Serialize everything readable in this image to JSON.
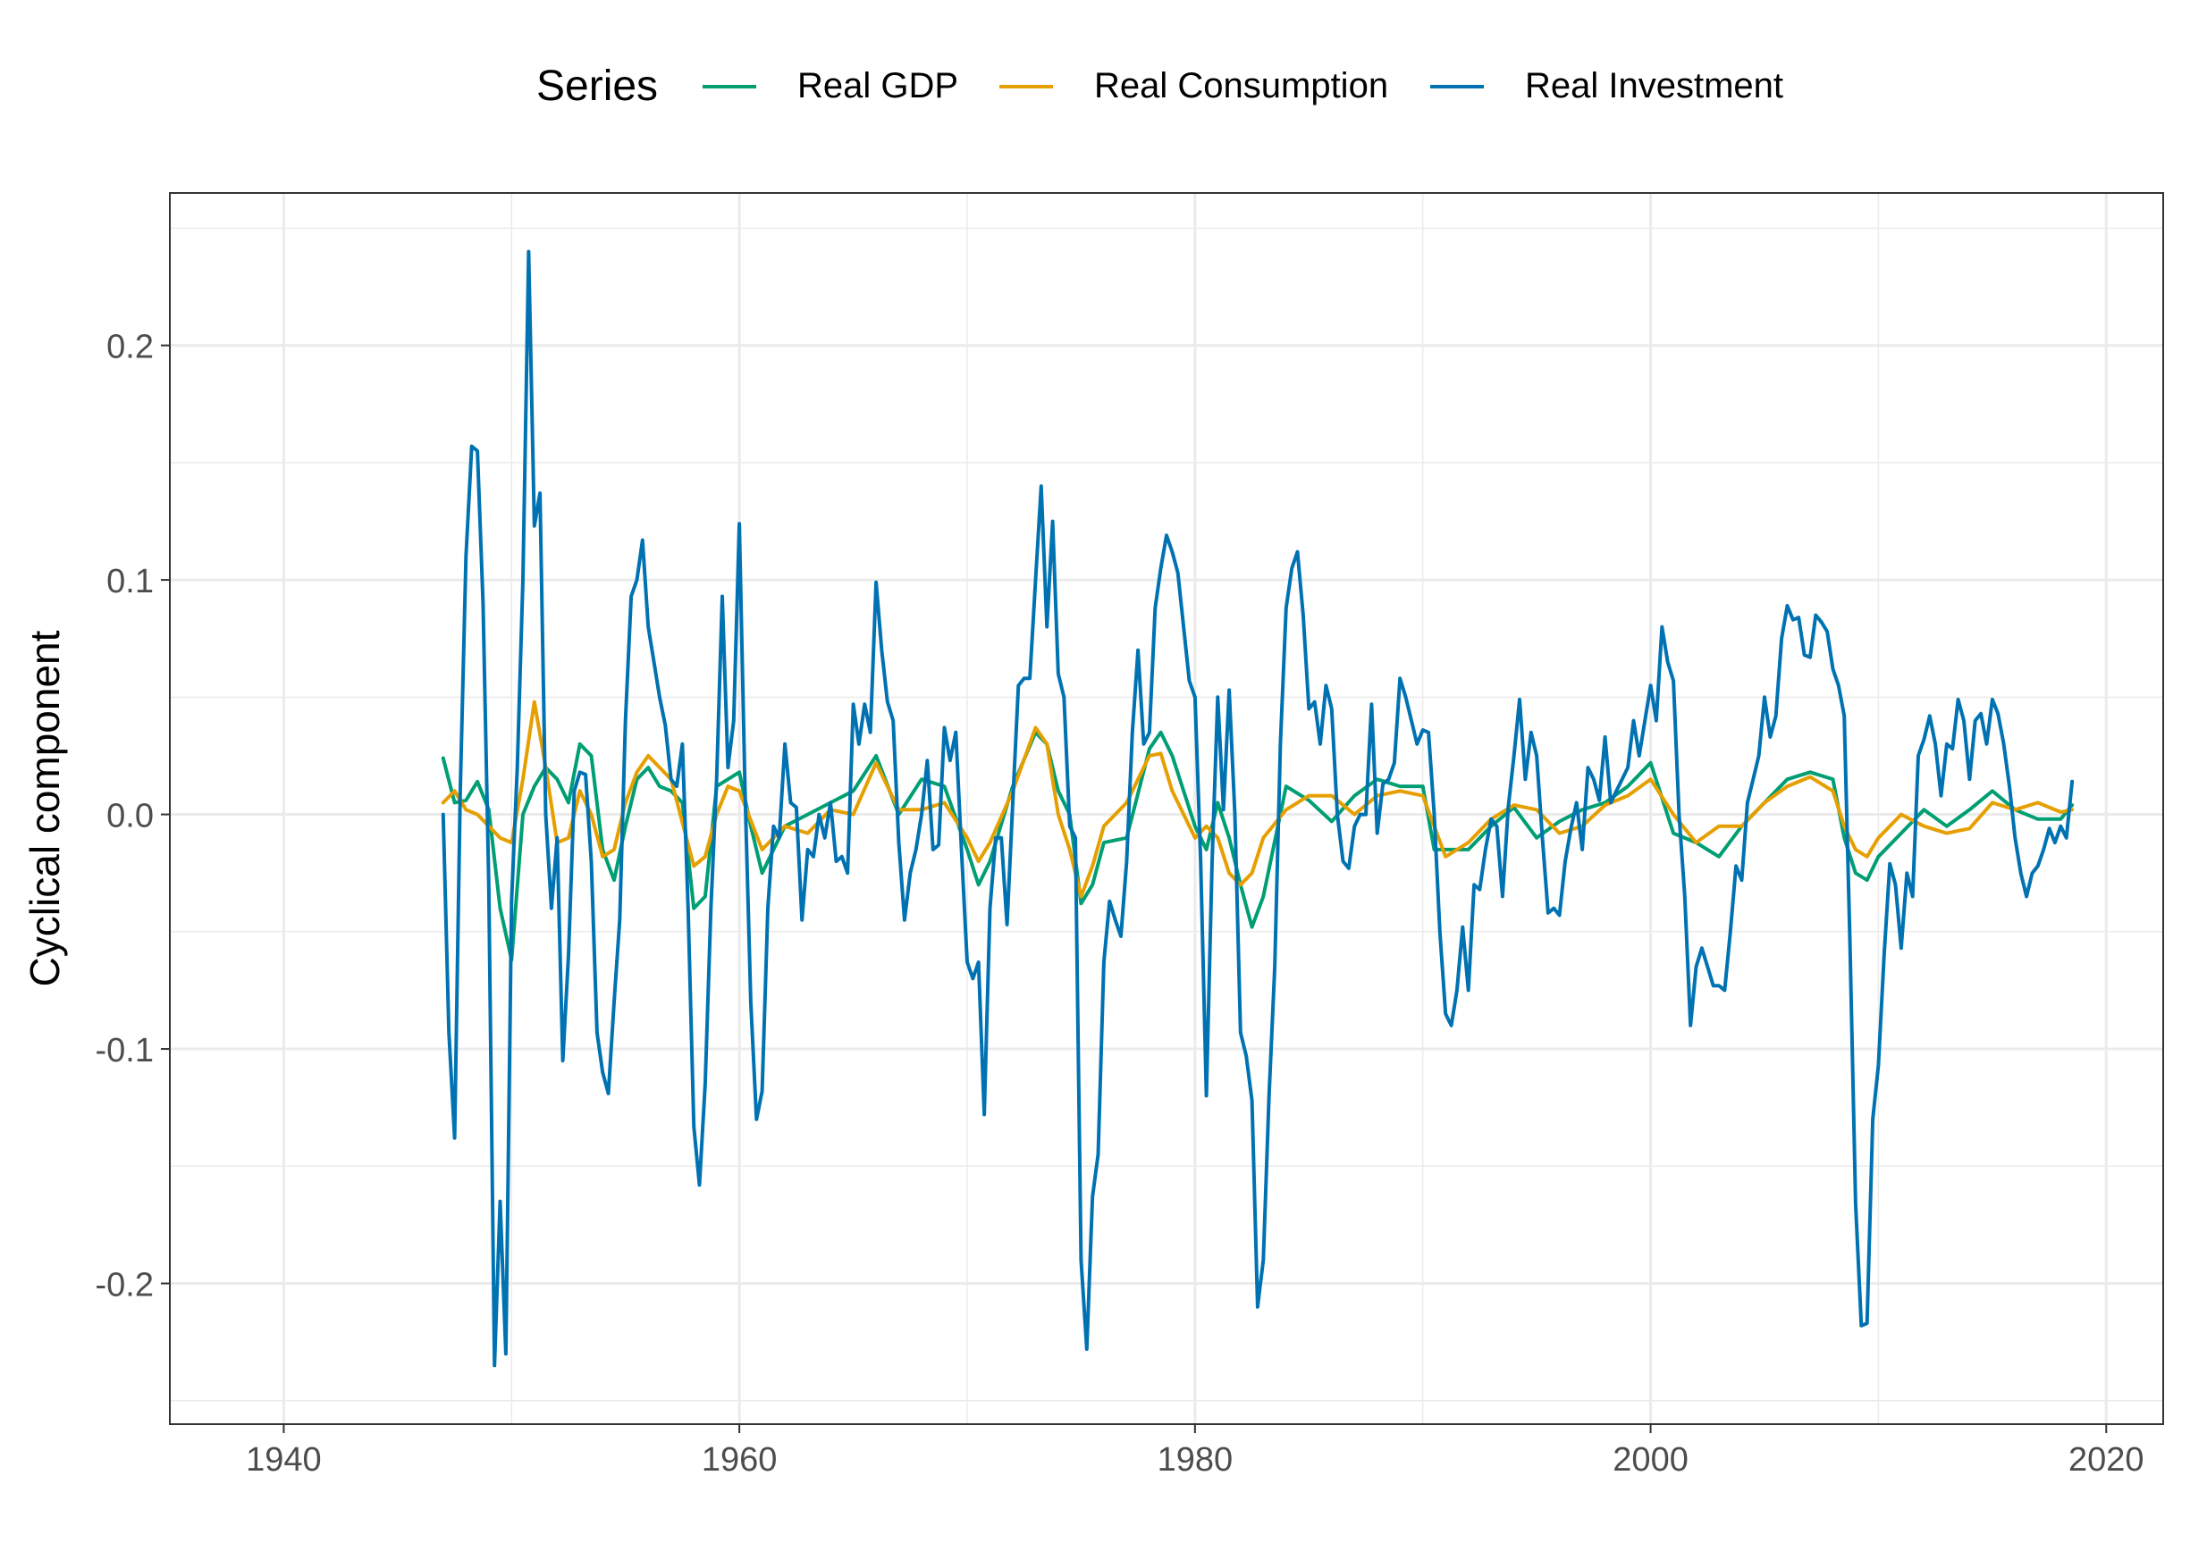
{
  "legend": {
    "title": "Series",
    "items": [
      {
        "label": "Real GDP",
        "color": "#009E73"
      },
      {
        "label": "Real Consumption",
        "color": "#E69F00"
      },
      {
        "label": "Real Investment",
        "color": "#0072B2"
      }
    ]
  },
  "chart_data": {
    "type": "line",
    "title": "",
    "xlabel": "",
    "ylabel": "Cyclical component",
    "xlim": [
      1935,
      2022.5
    ],
    "ylim": [
      -0.26,
      0.265
    ],
    "x_ticks": [
      1940,
      1960,
      1980,
      2000,
      2020
    ],
    "x_tick_labels": [
      "1940",
      "1960",
      "1980",
      "2000",
      "2020"
    ],
    "y_ticks": [
      -0.2,
      -0.1,
      0.0,
      0.1,
      0.2
    ],
    "y_tick_labels": [
      "-0.2",
      "-0.1",
      "0.0",
      "0.1",
      "0.2"
    ],
    "grid": true,
    "legend_position": "top",
    "series": [
      {
        "name": "Real GDP",
        "color": "#009E73",
        "x": [
          1947.0,
          1947.5,
          1948.0,
          1948.5,
          1949.0,
          1949.5,
          1950.0,
          1950.5,
          1951.0,
          1951.5,
          1952.0,
          1952.5,
          1953.0,
          1953.5,
          1954.0,
          1954.5,
          1955.0,
          1955.5,
          1956.0,
          1956.5,
          1957.0,
          1957.5,
          1958.0,
          1958.5,
          1959.0,
          1959.5,
          1960.0,
          1960.5,
          1961.0,
          1961.5,
          1962.0,
          1963.0,
          1964.0,
          1965.0,
          1966.0,
          1967.0,
          1968.0,
          1969.0,
          1970.0,
          1970.5,
          1971.0,
          1972.0,
          1973.0,
          1973.5,
          1974.0,
          1974.5,
          1975.0,
          1975.5,
          1976.0,
          1977.0,
          1978.0,
          1978.5,
          1979.0,
          1980.0,
          1980.5,
          1981.0,
          1981.5,
          1982.0,
          1982.5,
          1983.0,
          1984.0,
          1985.0,
          1986.0,
          1987.0,
          1988.0,
          1989.0,
          1990.0,
          1990.5,
          1991.0,
          1992.0,
          1993.0,
          1994.0,
          1995.0,
          1996.0,
          1997.0,
          1998.0,
          1999.0,
          2000.0,
          2001.0,
          2002.0,
          2003.0,
          2004.0,
          2005.0,
          2006.0,
          2007.0,
          2008.0,
          2008.5,
          2009.0,
          2009.5,
          2010.0,
          2011.0,
          2012.0,
          2013.0,
          2014.0,
          2015.0,
          2016.0,
          2017.0,
          2018.0,
          2018.5
        ],
        "values": [
          0.024,
          0.005,
          0.006,
          0.014,
          0.002,
          -0.04,
          -0.062,
          0.0,
          0.012,
          0.02,
          0.015,
          0.005,
          0.03,
          0.025,
          -0.015,
          -0.028,
          -0.005,
          0.015,
          0.02,
          0.012,
          0.01,
          0.005,
          -0.04,
          -0.035,
          0.012,
          0.015,
          0.018,
          -0.005,
          -0.025,
          -0.015,
          -0.005,
          0.0,
          0.005,
          0.01,
          0.025,
          0.0,
          0.015,
          0.012,
          -0.015,
          -0.03,
          -0.02,
          0.012,
          0.035,
          0.03,
          0.01,
          0.0,
          -0.038,
          -0.03,
          -0.012,
          -0.01,
          0.028,
          0.035,
          0.025,
          -0.005,
          -0.015,
          0.005,
          -0.01,
          -0.03,
          -0.048,
          -0.035,
          0.012,
          0.006,
          -0.003,
          0.008,
          0.015,
          0.012,
          0.012,
          -0.015,
          -0.015,
          -0.015,
          -0.005,
          0.003,
          -0.01,
          -0.003,
          0.002,
          0.005,
          0.012,
          0.022,
          -0.008,
          -0.012,
          -0.018,
          -0.005,
          0.005,
          0.015,
          0.018,
          0.015,
          -0.01,
          -0.025,
          -0.028,
          -0.018,
          -0.008,
          0.002,
          -0.005,
          0.002,
          0.01,
          0.002,
          -0.002,
          -0.002,
          0.004
        ]
      },
      {
        "name": "Real Consumption",
        "color": "#E69F00",
        "x": [
          1947.0,
          1947.5,
          1948.0,
          1948.5,
          1949.0,
          1949.5,
          1950.0,
          1950.5,
          1951.0,
          1951.5,
          1952.0,
          1952.5,
          1953.0,
          1953.5,
          1954.0,
          1954.5,
          1955.0,
          1955.5,
          1956.0,
          1957.0,
          1958.0,
          1958.5,
          1959.0,
          1959.5,
          1960.0,
          1961.0,
          1962.0,
          1963.0,
          1964.0,
          1965.0,
          1966.0,
          1967.0,
          1968.0,
          1969.0,
          1970.0,
          1970.5,
          1971.0,
          1972.0,
          1973.0,
          1973.5,
          1974.0,
          1974.5,
          1975.0,
          1975.5,
          1976.0,
          1977.0,
          1978.0,
          1978.5,
          1979.0,
          1980.0,
          1980.5,
          1981.0,
          1981.5,
          1982.0,
          1982.5,
          1983.0,
          1984.0,
          1985.0,
          1986.0,
          1987.0,
          1988.0,
          1989.0,
          1990.0,
          1991.0,
          1992.0,
          1993.0,
          1994.0,
          1995.0,
          1996.0,
          1997.0,
          1998.0,
          1999.0,
          2000.0,
          2001.0,
          2002.0,
          2003.0,
          2004.0,
          2005.0,
          2006.0,
          2007.0,
          2008.0,
          2008.5,
          2009.0,
          2009.5,
          2010.0,
          2011.0,
          2012.0,
          2013.0,
          2014.0,
          2015.0,
          2016.0,
          2017.0,
          2018.0,
          2018.5
        ],
        "values": [
          0.005,
          0.01,
          0.002,
          0.0,
          -0.005,
          -0.01,
          -0.012,
          0.015,
          0.048,
          0.02,
          -0.012,
          -0.01,
          0.01,
          0.0,
          -0.018,
          -0.015,
          0.005,
          0.018,
          0.025,
          0.015,
          -0.022,
          -0.018,
          0.0,
          0.012,
          0.01,
          -0.015,
          -0.005,
          -0.008,
          0.002,
          0.0,
          0.022,
          0.002,
          0.002,
          0.005,
          -0.01,
          -0.02,
          -0.012,
          0.01,
          0.037,
          0.03,
          0.0,
          -0.015,
          -0.035,
          -0.022,
          -0.005,
          0.005,
          0.025,
          0.026,
          0.01,
          -0.01,
          -0.005,
          -0.01,
          -0.025,
          -0.03,
          -0.025,
          -0.01,
          0.002,
          0.008,
          0.008,
          0.0,
          0.008,
          0.01,
          0.008,
          -0.018,
          -0.012,
          -0.002,
          0.004,
          0.002,
          -0.008,
          -0.005,
          0.004,
          0.008,
          0.015,
          0.0,
          -0.012,
          -0.005,
          -0.005,
          0.005,
          0.012,
          0.016,
          0.01,
          -0.005,
          -0.015,
          -0.018,
          -0.01,
          0.0,
          -0.005,
          -0.008,
          -0.006,
          0.005,
          0.002,
          0.005,
          0.001,
          0.002
        ]
      },
      {
        "name": "Real Investment",
        "color": "#0072B2",
        "x": [
          1947.0,
          1947.25,
          1947.5,
          1947.75,
          1948.0,
          1948.25,
          1948.5,
          1948.75,
          1949.0,
          1949.25,
          1949.5,
          1949.75,
          1950.0,
          1950.25,
          1950.5,
          1950.75,
          1951.0,
          1951.25,
          1951.5,
          1951.75,
          1952.0,
          1952.25,
          1952.5,
          1952.75,
          1953.0,
          1953.25,
          1953.5,
          1953.75,
          1954.0,
          1954.25,
          1954.5,
          1954.75,
          1955.0,
          1955.25,
          1955.5,
          1955.75,
          1956.0,
          1956.25,
          1956.5,
          1956.75,
          1957.0,
          1957.25,
          1957.5,
          1957.75,
          1958.0,
          1958.25,
          1958.5,
          1958.75,
          1959.0,
          1959.25,
          1959.5,
          1959.75,
          1960.0,
          1960.25,
          1960.5,
          1960.75,
          1961.0,
          1961.25,
          1961.5,
          1961.75,
          1962.0,
          1962.25,
          1962.5,
          1962.75,
          1963.0,
          1963.25,
          1963.5,
          1963.75,
          1964.0,
          1964.25,
          1964.5,
          1964.75,
          1965.0,
          1965.25,
          1965.5,
          1965.75,
          1966.0,
          1966.25,
          1966.5,
          1966.75,
          1967.0,
          1967.25,
          1967.5,
          1967.75,
          1968.0,
          1968.25,
          1968.5,
          1968.75,
          1969.0,
          1969.25,
          1969.5,
          1969.75,
          1970.0,
          1970.25,
          1970.5,
          1970.75,
          1971.0,
          1971.25,
          1971.5,
          1971.75,
          1972.0,
          1972.25,
          1972.5,
          1972.75,
          1973.0,
          1973.25,
          1973.5,
          1973.75,
          1974.0,
          1974.25,
          1974.5,
          1974.75,
          1975.0,
          1975.25,
          1975.5,
          1975.75,
          1976.0,
          1976.25,
          1976.5,
          1976.75,
          1977.0,
          1977.25,
          1977.5,
          1977.75,
          1978.0,
          1978.25,
          1978.5,
          1978.75,
          1979.0,
          1979.25,
          1979.5,
          1979.75,
          1980.0,
          1980.25,
          1980.5,
          1980.75,
          1981.0,
          1981.25,
          1981.5,
          1981.75,
          1982.0,
          1982.25,
          1982.5,
          1982.75,
          1983.0,
          1983.25,
          1983.5,
          1983.75,
          1984.0,
          1984.25,
          1984.5,
          1984.75,
          1985.0,
          1985.25,
          1985.5,
          1985.75,
          1986.0,
          1986.25,
          1986.5,
          1986.75,
          1987.0,
          1987.25,
          1987.5,
          1987.75,
          1988.0,
          1988.25,
          1988.5,
          1988.75,
          1989.0,
          1989.25,
          1989.5,
          1989.75,
          1990.0,
          1990.25,
          1990.5,
          1990.75,
          1991.0,
          1991.25,
          1991.5,
          1991.75,
          1992.0,
          1992.25,
          1992.5,
          1992.75,
          1993.0,
          1993.25,
          1993.5,
          1993.75,
          1994.0,
          1994.25,
          1994.5,
          1994.75,
          1995.0,
          1995.25,
          1995.5,
          1995.75,
          1996.0,
          1996.25,
          1996.5,
          1996.75,
          1997.0,
          1997.25,
          1997.5,
          1997.75,
          1998.0,
          1998.25,
          1998.5,
          1998.75,
          1999.0,
          1999.25,
          1999.5,
          1999.75,
          2000.0,
          2000.25,
          2000.5,
          2000.75,
          2001.0,
          2001.25,
          2001.5,
          2001.75,
          2002.0,
          2002.25,
          2002.5,
          2002.75,
          2003.0,
          2003.25,
          2003.5,
          2003.75,
          2004.0,
          2004.25,
          2004.5,
          2004.75,
          2005.0,
          2005.25,
          2005.5,
          2005.75,
          2006.0,
          2006.25,
          2006.5,
          2006.75,
          2007.0,
          2007.25,
          2007.5,
          2007.75,
          2008.0,
          2008.25,
          2008.5,
          2008.75,
          2009.0,
          2009.25,
          2009.5,
          2009.75,
          2010.0,
          2010.25,
          2010.5,
          2010.75,
          2011.0,
          2011.25,
          2011.5,
          2011.75,
          2012.0,
          2012.25,
          2012.5,
          2012.75,
          2013.0,
          2013.25,
          2013.5,
          2013.75,
          2014.0,
          2014.25,
          2014.5,
          2014.75,
          2015.0,
          2015.25,
          2015.5,
          2015.75,
          2016.0,
          2016.25,
          2016.5,
          2016.75,
          2017.0,
          2017.25,
          2017.5,
          2017.75,
          2018.0,
          2018.25,
          2018.5
        ],
        "values": [
          0.0,
          -0.093,
          -0.138,
          0.01,
          0.11,
          0.157,
          0.155,
          0.09,
          -0.03,
          -0.235,
          -0.165,
          -0.23,
          -0.037,
          0.02,
          0.1,
          0.24,
          0.123,
          0.137,
          0.0,
          -0.04,
          -0.01,
          -0.105,
          -0.06,
          0.01,
          0.018,
          0.017,
          -0.02,
          -0.093,
          -0.11,
          -0.119,
          -0.08,
          -0.045,
          0.04,
          0.093,
          0.1,
          0.117,
          0.08,
          0.065,
          0.05,
          0.038,
          0.015,
          0.012,
          0.03,
          -0.04,
          -0.133,
          -0.158,
          -0.115,
          -0.04,
          0.015,
          0.093,
          0.02,
          0.04,
          0.124,
          0.01,
          -0.08,
          -0.13,
          -0.118,
          -0.04,
          -0.005,
          -0.01,
          0.03,
          0.005,
          0.003,
          -0.045,
          -0.015,
          -0.018,
          -0.0,
          -0.01,
          0.005,
          -0.02,
          -0.018,
          -0.025,
          0.047,
          0.03,
          0.047,
          0.035,
          0.099,
          0.07,
          0.048,
          0.04,
          -0.012,
          -0.045,
          -0.025,
          -0.015,
          0.0,
          0.023,
          -0.015,
          -0.013,
          0.037,
          0.023,
          0.035,
          -0.015,
          -0.063,
          -0.07,
          -0.063,
          -0.128,
          -0.04,
          -0.01,
          -0.01,
          -0.047,
          0.005,
          0.055,
          0.058,
          0.058,
          0.1,
          0.14,
          0.08,
          0.125,
          0.06,
          0.05,
          -0.005,
          -0.01,
          -0.19,
          -0.228,
          -0.163,
          -0.145,
          -0.063,
          -0.037,
          -0.045,
          -0.052,
          -0.02,
          0.035,
          0.07,
          0.03,
          0.035,
          0.088,
          0.105,
          0.119,
          0.112,
          0.103,
          0.08,
          0.057,
          0.05,
          -0.02,
          -0.12,
          -0.02,
          0.05,
          0.002,
          0.053,
          -0.0,
          -0.093,
          -0.103,
          -0.122,
          -0.21,
          -0.19,
          -0.12,
          -0.065,
          0.03,
          0.088,
          0.105,
          0.112,
          0.085,
          0.045,
          0.048,
          0.03,
          0.055,
          0.045,
          0.0,
          -0.02,
          -0.023,
          -0.005,
          0.0,
          -0.0,
          0.047,
          -0.008,
          0.013,
          0.015,
          0.022,
          0.058,
          0.05,
          0.04,
          0.03,
          0.036,
          0.035,
          -0.0,
          -0.05,
          -0.085,
          -0.09,
          -0.075,
          -0.048,
          -0.075,
          -0.03,
          -0.032,
          -0.015,
          -0.002,
          -0.005,
          -0.035,
          0.003,
          0.025,
          0.049,
          0.015,
          0.035,
          0.025,
          -0.01,
          -0.042,
          -0.04,
          -0.043,
          -0.02,
          -0.006,
          0.005,
          -0.015,
          0.02,
          0.015,
          0.006,
          0.033,
          0.005,
          0.01,
          0.015,
          0.02,
          0.04,
          0.025,
          0.04,
          0.055,
          0.04,
          0.08,
          0.065,
          0.057,
          0.0,
          -0.035,
          -0.09,
          -0.065,
          -0.057,
          -0.065,
          -0.073,
          -0.073,
          -0.075,
          -0.05,
          -0.022,
          -0.028,
          0.005,
          0.015,
          0.025,
          0.05,
          0.033,
          0.042,
          0.075,
          0.089,
          0.083,
          0.084,
          0.068,
          0.067,
          0.085,
          0.082,
          0.078,
          0.062,
          0.055,
          0.042,
          -0.055,
          -0.166,
          -0.218,
          -0.217,
          -0.13,
          -0.107,
          -0.06,
          -0.021,
          -0.03,
          -0.057,
          -0.025,
          -0.035,
          0.025,
          0.032,
          0.042,
          0.03,
          0.008,
          0.03,
          0.028,
          0.049,
          0.04,
          0.015,
          0.04,
          0.043,
          0.03,
          0.049,
          0.043,
          0.03,
          0.012,
          -0.01,
          -0.025,
          -0.035,
          -0.025,
          -0.022,
          -0.015,
          -0.006,
          -0.012,
          -0.005,
          -0.01,
          0.014
        ]
      }
    ]
  }
}
